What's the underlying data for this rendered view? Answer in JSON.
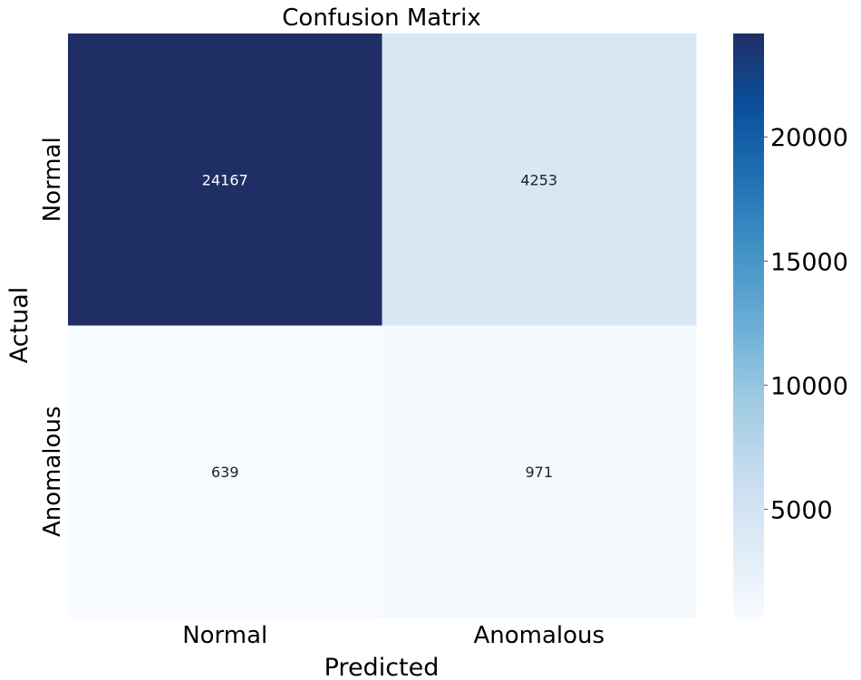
{
  "chart_data": {
    "type": "heatmap",
    "title": "Confusion Matrix",
    "xlabel": "Predicted",
    "ylabel": "Actual",
    "x_categories": [
      "Normal",
      "Anomalous"
    ],
    "y_categories": [
      "Normal",
      "Anomalous"
    ],
    "values": [
      [
        24167,
        4253
      ],
      [
        639,
        971
      ]
    ],
    "colormap": "Blues",
    "colorbar": {
      "range": [
        639,
        24167
      ],
      "ticks": [
        5000,
        10000,
        15000,
        20000
      ],
      "tick_labels": [
        "5000",
        "10000",
        "15000",
        "20000"
      ]
    },
    "colors": [
      "#f7fbff",
      "#deebf7",
      "#c6dbef",
      "#9ecae1",
      "#6baed6",
      "#4292c6",
      "#2171b5",
      "#0b4f9c",
      "#1f2f66"
    ]
  }
}
